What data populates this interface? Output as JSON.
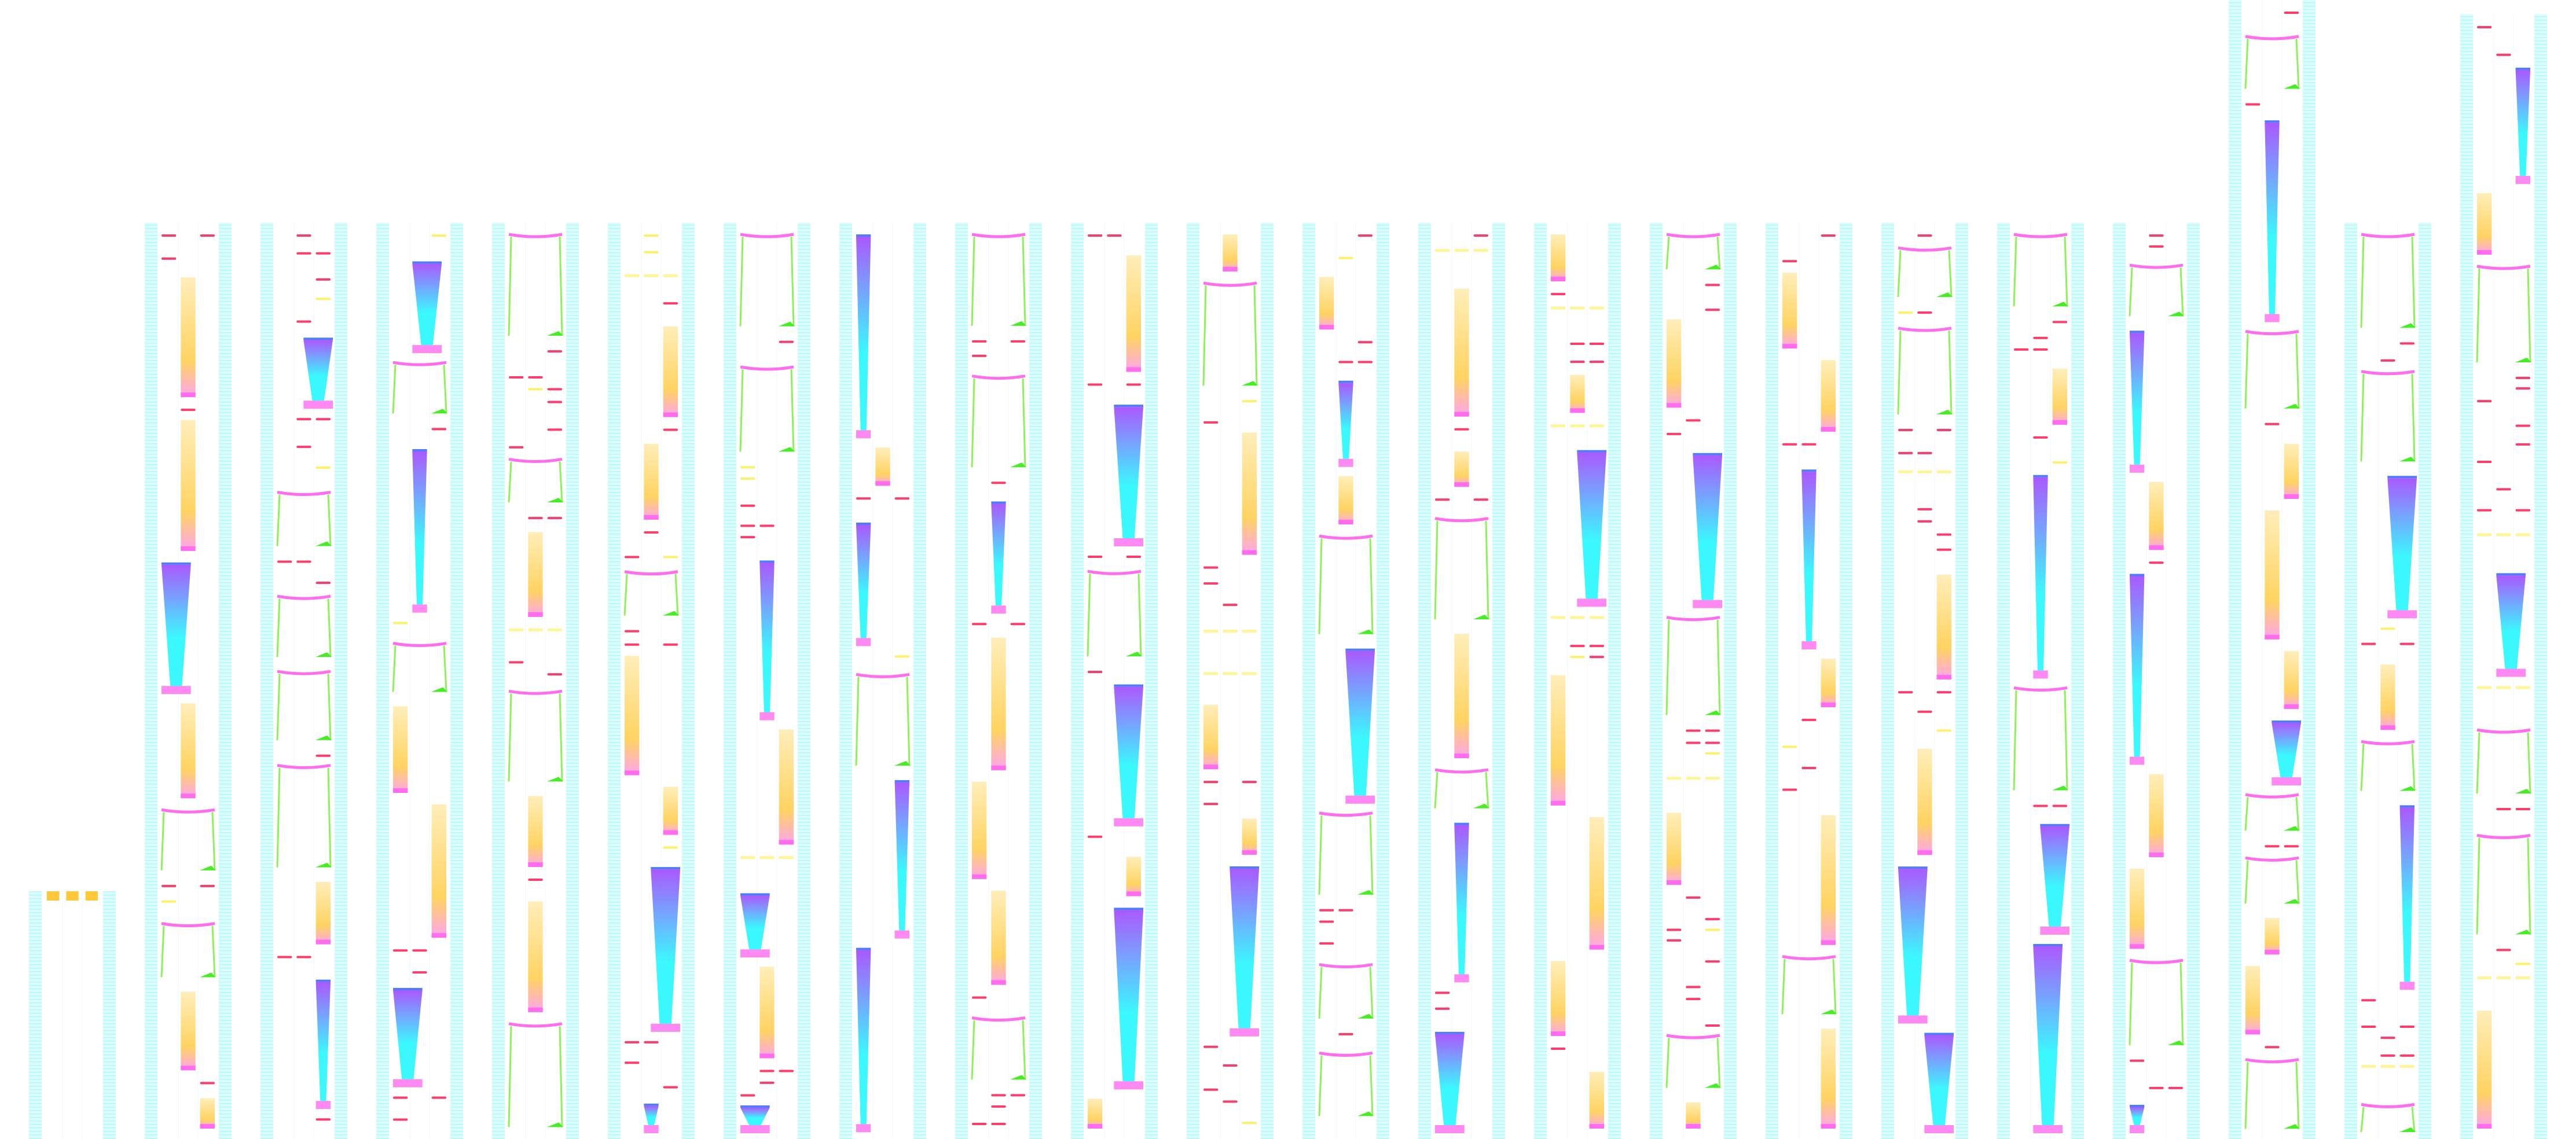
{
  "chart": {
    "lane_count": 22,
    "colors": {
      "rail": "#c8fbfb",
      "rail_line": "#9ff3f3",
      "tap_note": "#ff3b6b",
      "yellow_note": "#fff06a",
      "cyan_note": "#7ff6f6",
      "hold_top": "#9b3cff",
      "hold_bottom": "#18f7ff",
      "pink_head": "#ff6cf0",
      "orange_hold": "#ffc83a",
      "green_slide": "#44ee22",
      "blue_bar": "#4f7bff"
    }
  }
}
